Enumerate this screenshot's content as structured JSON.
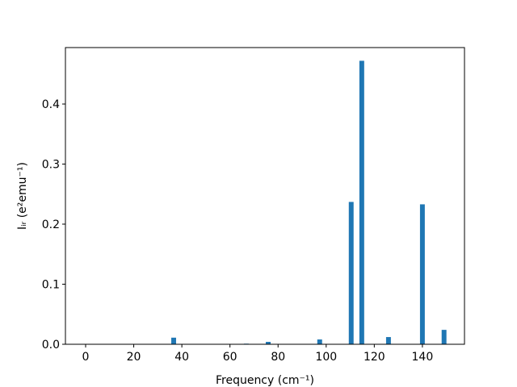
{
  "chart_data": {
    "type": "bar",
    "xlabel": "Frequency (cm⁻¹)",
    "ylabel": "Iᵢᵣ (e²emu⁻¹)",
    "x": [
      36.6,
      66.8,
      75.9,
      97.3,
      110.4,
      114.8,
      125.9,
      140,
      149
    ],
    "values": [
      0.011,
      0.001,
      0.004,
      0.008,
      0.237,
      0.472,
      0.012,
      0.233,
      0.024
    ],
    "color": "#1f77b4",
    "xlim": [
      -8.4,
      157.5
    ],
    "xticks": [
      0,
      20,
      40,
      60,
      80,
      100,
      120,
      140
    ],
    "ylim": [
      0,
      0.494
    ],
    "yticks": [
      {
        "value": 0,
        "label": "0.0"
      },
      0.1,
      0.2,
      0.3,
      0.4
    ]
  }
}
